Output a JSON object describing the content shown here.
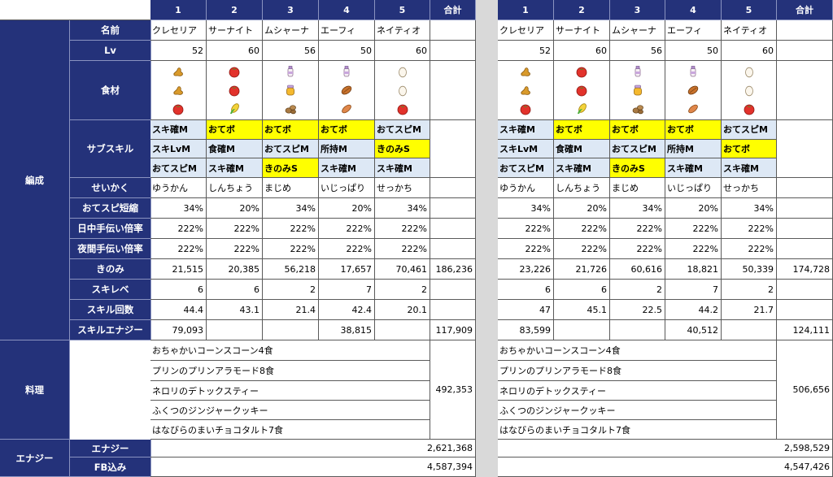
{
  "col_headers": [
    "1",
    "2",
    "3",
    "4",
    "5",
    "合計"
  ],
  "labels": {
    "group_formation": "編成",
    "group_cooking": "料理",
    "group_energy": "エナジー",
    "name": "名前",
    "lv": "Lv",
    "ingredients": "食材",
    "subskill": "サブスキル",
    "nature": "せいかく",
    "help_speed": "おてスピ短縮",
    "day_help": "日中手伝い倍率",
    "night_help": "夜間手伝い倍率",
    "berry": "きのみ",
    "skill_level": "スキレベ",
    "skill_count": "スキル回数",
    "skill_energy": "スキルエナジー",
    "energy": "エナジー",
    "fb": "FB込み"
  },
  "tables": [
    {
      "names": [
        "クレセリア",
        "サーナイト",
        "ムシャーナ",
        "エーフィ",
        "ネイティオ"
      ],
      "lv": [
        "52",
        "60",
        "56",
        "50",
        "60"
      ],
      "ingredients": [
        [
          "ginger-icon",
          "ginger-icon",
          "tomato-icon"
        ],
        [
          "tomato-icon",
          "tomato-icon",
          "corn-icon"
        ],
        [
          "milk-icon",
          "honey-icon",
          "potato-icon"
        ],
        [
          "milk-icon",
          "cacao-icon",
          "sausage-icon"
        ],
        [
          "egg-icon",
          "egg-icon",
          "tomato-icon"
        ]
      ],
      "subskills": [
        [
          {
            "t": "スキ確M",
            "c": "blu"
          },
          {
            "t": "スキLvM",
            "c": "blu"
          },
          {
            "t": "おてスピM",
            "c": "blu"
          }
        ],
        [
          {
            "t": "おてボ",
            "c": "yel"
          },
          {
            "t": "食確M",
            "c": "blu"
          },
          {
            "t": "スキ確M",
            "c": "blu"
          }
        ],
        [
          {
            "t": "おてボ",
            "c": "yel"
          },
          {
            "t": "おてスピM",
            "c": "blu"
          },
          {
            "t": "きのみS",
            "c": "yel"
          }
        ],
        [
          {
            "t": "おてボ",
            "c": "yel"
          },
          {
            "t": "所持M",
            "c": "blu"
          },
          {
            "t": "スキ確M",
            "c": "blu"
          }
        ],
        [
          {
            "t": "おてスピM",
            "c": "blu"
          },
          {
            "t": "きのみS",
            "c": "yel"
          },
          {
            "t": "スキ確M",
            "c": "blu"
          }
        ]
      ],
      "nature": [
        "ゆうかん",
        "しんちょう",
        "まじめ",
        "いじっぱり",
        "せっかち"
      ],
      "help_speed": [
        "34%",
        "20%",
        "34%",
        "20%",
        "34%"
      ],
      "day_help": [
        "222%",
        "222%",
        "222%",
        "222%",
        "222%"
      ],
      "night_help": [
        "222%",
        "222%",
        "222%",
        "222%",
        "222%"
      ],
      "berry": [
        "21,515",
        "20,385",
        "56,218",
        "17,657",
        "70,461"
      ],
      "berry_total": "186,236",
      "skill_level": [
        "6",
        "6",
        "2",
        "7",
        "2"
      ],
      "skill_count": [
        "44.4",
        "43.1",
        "21.4",
        "42.4",
        "20.1"
      ],
      "skill_energy": [
        "79,093",
        "",
        "",
        "38,815",
        ""
      ],
      "skill_energy_total": "117,909",
      "dishes": [
        "おちゃかいコーンスコーン4食",
        "プリンのプリンアラモード8食",
        "ネロリのデトックスティー",
        "ふくつのジンジャークッキー",
        "はなびらのまいチョコタルト7食"
      ],
      "dish_total": "492,353",
      "energy": "2,621,368",
      "fb": "4,587,394"
    },
    {
      "names": [
        "クレセリア",
        "サーナイト",
        "ムシャーナ",
        "エーフィ",
        "ネイティオ"
      ],
      "lv": [
        "52",
        "60",
        "56",
        "50",
        "60"
      ],
      "ingredients": [
        [
          "ginger-icon",
          "ginger-icon",
          "tomato-icon"
        ],
        [
          "tomato-icon",
          "tomato-icon",
          "corn-icon"
        ],
        [
          "milk-icon",
          "honey-icon",
          "potato-icon"
        ],
        [
          "milk-icon",
          "cacao-icon",
          "sausage-icon"
        ],
        [
          "egg-icon",
          "egg-icon",
          "tomato-icon"
        ]
      ],
      "subskills": [
        [
          {
            "t": "スキ確M",
            "c": "blu"
          },
          {
            "t": "スキLvM",
            "c": "blu"
          },
          {
            "t": "おてスピM",
            "c": "blu"
          }
        ],
        [
          {
            "t": "おてボ",
            "c": "yel"
          },
          {
            "t": "食確M",
            "c": "blu"
          },
          {
            "t": "スキ確M",
            "c": "blu"
          }
        ],
        [
          {
            "t": "おてボ",
            "c": "yel"
          },
          {
            "t": "おてスピM",
            "c": "blu"
          },
          {
            "t": "きのみS",
            "c": "yel"
          }
        ],
        [
          {
            "t": "おてボ",
            "c": "yel"
          },
          {
            "t": "所持M",
            "c": "blu"
          },
          {
            "t": "スキ確M",
            "c": "blu"
          }
        ],
        [
          {
            "t": "おてスピM",
            "c": "blu"
          },
          {
            "t": "おてボ",
            "c": "yel"
          },
          {
            "t": "スキ確M",
            "c": "blu"
          }
        ]
      ],
      "nature": [
        "ゆうかん",
        "しんちょう",
        "まじめ",
        "いじっぱり",
        "せっかち"
      ],
      "help_speed": [
        "34%",
        "20%",
        "34%",
        "20%",
        "34%"
      ],
      "day_help": [
        "222%",
        "222%",
        "222%",
        "222%",
        "222%"
      ],
      "night_help": [
        "222%",
        "222%",
        "222%",
        "222%",
        "222%"
      ],
      "berry": [
        "23,226",
        "21,726",
        "60,616",
        "18,821",
        "50,339"
      ],
      "berry_total": "174,728",
      "skill_level": [
        "6",
        "6",
        "2",
        "7",
        "2"
      ],
      "skill_count": [
        "47",
        "45.1",
        "22.5",
        "44.2",
        "21.7"
      ],
      "skill_energy": [
        "83,599",
        "",
        "",
        "40,512",
        ""
      ],
      "skill_energy_total": "124,111",
      "dishes": [
        "おちゃかいコーンスコーン4食",
        "プリンのプリンアラモード8食",
        "ネロリのデトックスティー",
        "ふくつのジンジャークッキー",
        "はなびらのまいチョコタルト7食"
      ],
      "dish_total": "506,656",
      "energy": "2,598,529",
      "fb": "4,547,426"
    }
  ],
  "colors": {
    "header_bg": "#24327a",
    "yellow": "#ffff00",
    "light_blue": "#dde8f5"
  }
}
